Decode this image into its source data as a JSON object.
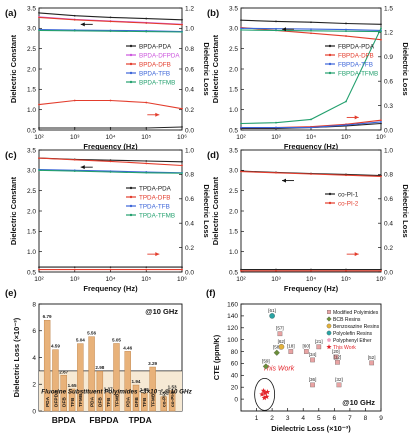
{
  "chart_data": [
    {
      "type": "line",
      "panel": "(a)",
      "xlabel": "Frequency (Hz)",
      "ylabel": "Dielectric Constant",
      "ylabel2": "Dielectric Loss",
      "xscale": "log",
      "xlim": [
        100,
        1000000
      ],
      "xticks": [
        "10²",
        "10³",
        "10⁴",
        "10⁵",
        "10⁶"
      ],
      "ylim": [
        0.5,
        3.5
      ],
      "yticks": [
        "0.5",
        "1.0",
        "1.5",
        "2.0",
        "2.5",
        "3.0",
        "3.5"
      ],
      "y2lim": [
        0.0,
        1.2
      ],
      "y2ticks": [
        "0.0",
        "0.2",
        "0.4",
        "0.6",
        "0.8",
        "1.0",
        "1.2"
      ],
      "legend_position": "center-right",
      "series": [
        {
          "name": "BPDA-PDA",
          "color": "#222222",
          "axis": "left",
          "x": [
            100,
            1000,
            10000,
            100000,
            1000000
          ],
          "y": [
            3.38,
            3.31,
            3.27,
            3.24,
            3.21
          ]
        },
        {
          "name": "BPDA-DFPDA",
          "color": "#cc55dd",
          "axis": "left",
          "x": [
            100,
            1000,
            10000,
            100000,
            1000000
          ],
          "y": [
            3.28,
            3.22,
            3.18,
            3.14,
            3.1
          ]
        },
        {
          "name": "BPDA-DFB",
          "color": "#e33c2c",
          "axis": "left",
          "x": [
            100,
            1000,
            10000,
            100000,
            1000000
          ],
          "y": [
            3.27,
            3.21,
            3.17,
            3.13,
            3.09
          ]
        },
        {
          "name": "BPDA-TFB",
          "color": "#3b64d8",
          "axis": "left",
          "x": [
            100,
            1000,
            10000,
            100000,
            1000000
          ],
          "y": [
            2.97,
            2.96,
            2.95,
            2.94,
            2.92
          ]
        },
        {
          "name": "BPDA-TFMB",
          "color": "#23a06e",
          "axis": "left",
          "x": [
            100,
            1000,
            10000,
            100000,
            1000000
          ],
          "y": [
            2.95,
            2.94,
            2.93,
            2.92,
            2.91
          ]
        },
        {
          "name": "BPDA-DFB loss",
          "color": "#e33c2c",
          "axis": "right",
          "x": [
            100,
            1000,
            10000,
            100000,
            1000000
          ],
          "y": [
            0.25,
            0.29,
            0.29,
            0.27,
            0.21
          ]
        },
        {
          "name": "BPDA-PDA loss",
          "color": "#222222",
          "axis": "right",
          "x": [
            100,
            1000,
            10000,
            100000,
            1000000
          ],
          "y": [
            0.02,
            0.02,
            0.02,
            0.02,
            0.03
          ]
        }
      ]
    },
    {
      "type": "line",
      "panel": "(b)",
      "xlabel": "Frequency (Hz)",
      "ylabel": "Dielectric Constant",
      "ylabel2": "Dielectric Loss",
      "xscale": "log",
      "xlim": [
        100,
        1000000
      ],
      "xticks": [
        "10²",
        "10³",
        "10⁴",
        "10⁵",
        "10⁶"
      ],
      "ylim": [
        0.5,
        3.5
      ],
      "yticks": [
        "0.5",
        "1.0",
        "1.5",
        "2.0",
        "2.5",
        "3.0",
        "3.5"
      ],
      "y2lim": [
        0.0,
        1.5
      ],
      "y2ticks": [
        "0.0",
        "0.3",
        "0.6",
        "0.9",
        "1.2",
        "1.5"
      ],
      "legend_position": "center-right",
      "series": [
        {
          "name": "FBPDA-PDA",
          "color": "#222222",
          "axis": "left",
          "x": [
            100,
            1000,
            10000,
            100000,
            1000000
          ],
          "y": [
            3.2,
            3.17,
            3.15,
            3.12,
            3.1
          ]
        },
        {
          "name": "FBPDA-DFB",
          "color": "#e33c2c",
          "axis": "left",
          "x": [
            100,
            1000,
            10000,
            100000,
            1000000
          ],
          "y": [
            3.02,
            2.95,
            2.88,
            2.81,
            2.72
          ]
        },
        {
          "name": "FBPDA-TFB",
          "color": "#3b64d8",
          "axis": "left",
          "x": [
            100,
            1000,
            10000,
            100000,
            1000000
          ],
          "y": [
            3.0,
            2.99,
            2.98,
            2.97,
            2.95
          ]
        },
        {
          "name": "FBPDA-TFMB",
          "color": "#23a06e",
          "axis": "left",
          "x": [
            100,
            1000,
            10000,
            100000,
            1000000
          ],
          "y": [
            2.96,
            2.95,
            2.94,
            2.93,
            2.92
          ]
        },
        {
          "name": "FBPDA-PDA loss",
          "color": "#222222",
          "axis": "right",
          "x": [
            100,
            1000,
            10000,
            100000,
            1000000
          ],
          "y": [
            0.02,
            0.02,
            0.03,
            0.05,
            0.08
          ]
        },
        {
          "name": "FBPDA-DFB loss",
          "color": "#e33c2c",
          "axis": "right",
          "x": [
            100,
            1000,
            10000,
            100000,
            1000000
          ],
          "y": [
            0.03,
            0.03,
            0.04,
            0.07,
            0.12
          ]
        },
        {
          "name": "FBPDA-TFB loss",
          "color": "#3b64d8",
          "axis": "right",
          "x": [
            100,
            1000,
            10000,
            100000,
            1000000
          ],
          "y": [
            0.03,
            0.03,
            0.03,
            0.06,
            0.1
          ]
        },
        {
          "name": "FBPDA-TFMB loss",
          "color": "#23a06e",
          "axis": "right",
          "x": [
            100,
            1000,
            10000,
            100000,
            1000000
          ],
          "y": [
            0.08,
            0.09,
            0.13,
            0.35,
            1.25
          ]
        }
      ]
    },
    {
      "type": "line",
      "panel": "(c)",
      "xlabel": "Frequency (Hz)",
      "ylabel": "Dielectric Constant",
      "ylabel2": "Dielectric Loss",
      "xscale": "log",
      "xlim": [
        100,
        1000000
      ],
      "xticks": [
        "10²",
        "10³",
        "10⁴",
        "10⁵",
        "10⁶"
      ],
      "ylim": [
        0.5,
        3.5
      ],
      "yticks": [
        "0.5",
        "1.0",
        "1.5",
        "2.0",
        "2.5",
        "3.0",
        "3.5"
      ],
      "y2lim": [
        0.0,
        1.0
      ],
      "y2ticks": [
        "0.0",
        "0.2",
        "0.4",
        "0.6",
        "0.8",
        "1.0"
      ],
      "legend_position": "center-right",
      "series": [
        {
          "name": "TPDA-PDA",
          "color": "#222222",
          "axis": "left",
          "x": [
            100,
            1000,
            10000,
            100000,
            1000000
          ],
          "y": [
            3.3,
            3.27,
            3.25,
            3.23,
            3.21
          ]
        },
        {
          "name": "TPDA-DFB",
          "color": "#e33c2c",
          "axis": "left",
          "x": [
            100,
            1000,
            10000,
            100000,
            1000000
          ],
          "y": [
            3.3,
            3.26,
            3.22,
            3.17,
            3.12
          ]
        },
        {
          "name": "TPDA-TFB",
          "color": "#3b64d8",
          "axis": "left",
          "x": [
            100,
            1000,
            10000,
            100000,
            1000000
          ],
          "y": [
            3.02,
            3.0,
            2.98,
            2.96,
            2.94
          ]
        },
        {
          "name": "TPDA-TFMB",
          "color": "#23a06e",
          "axis": "left",
          "x": [
            100,
            1000,
            10000,
            100000,
            1000000
          ],
          "y": [
            3.0,
            2.98,
            2.96,
            2.94,
            2.93
          ]
        },
        {
          "name": "TPDA-PDA loss",
          "color": "#222222",
          "axis": "right",
          "x": [
            100,
            1000,
            10000,
            100000,
            1000000
          ],
          "y": [
            0.04,
            0.04,
            0.04,
            0.04,
            0.04
          ]
        },
        {
          "name": "TPDA-DFB loss",
          "color": "#e33c2c",
          "axis": "right",
          "x": [
            100,
            1000,
            10000,
            100000,
            1000000
          ],
          "y": [
            0.02,
            0.02,
            0.02,
            0.02,
            0.02
          ]
        }
      ]
    },
    {
      "type": "line",
      "panel": "(d)",
      "xlabel": "Frequency (Hz)",
      "ylabel": "Dielectric Constant",
      "ylabel2": "Dielectric Loss",
      "xscale": "log",
      "xlim": [
        100,
        1000000
      ],
      "xticks": [
        "10²",
        "10³",
        "10⁴",
        "10⁵",
        "10⁶"
      ],
      "ylim": [
        0.5,
        3.5
      ],
      "yticks": [
        "0.5",
        "1.0",
        "1.5",
        "2.0",
        "2.5",
        "3.0",
        "3.5"
      ],
      "y2lim": [
        0.0,
        1.0
      ],
      "y2ticks": [
        "0.0",
        "0.2",
        "0.4",
        "0.6",
        "0.8",
        "1.0"
      ],
      "legend_position": "center-right",
      "series": [
        {
          "name": "co-PI-1",
          "color": "#222222",
          "axis": "left",
          "x": [
            100,
            1000,
            10000,
            100000,
            1000000
          ],
          "y": [
            2.98,
            2.95,
            2.92,
            2.9,
            2.87
          ]
        },
        {
          "name": "co-PI-2",
          "color": "#e33c2c",
          "axis": "left",
          "x": [
            100,
            1000,
            10000,
            100000,
            1000000
          ],
          "y": [
            2.97,
            2.94,
            2.91,
            2.88,
            2.85
          ]
        },
        {
          "name": "co-PI-1 loss",
          "color": "#222222",
          "axis": "right",
          "x": [
            100,
            1000,
            10000,
            100000,
            1000000
          ],
          "y": [
            0.02,
            0.02,
            0.02,
            0.02,
            0.02
          ]
        },
        {
          "name": "co-PI-2 loss",
          "color": "#e33c2c",
          "axis": "right",
          "x": [
            100,
            1000,
            10000,
            100000,
            1000000
          ],
          "y": [
            0.01,
            0.01,
            0.01,
            0.01,
            0.01
          ]
        }
      ]
    },
    {
      "type": "bar",
      "panel": "(e)",
      "title": "@10 GHz",
      "ylabel": "Dielectric Loss (×10⁻³)",
      "ylim": [
        0,
        8
      ],
      "yticks": [
        "0",
        "2",
        "4",
        "6",
        "8"
      ],
      "reference_line": 3,
      "annotation": "Fluorine Substituent Polyimides <3×10⁻³ @10 GHz",
      "categories": [
        "PDA",
        "DFPDA",
        "DFB",
        "TFB",
        "TFMB",
        "PDA",
        "DFB",
        "TFB",
        "TFMB",
        "PDA",
        "DFB",
        "TFB",
        "TFMB",
        "co-PI-1",
        "co-PI-2"
      ],
      "groups": [
        {
          "name": "BPDA",
          "categories": [
            "PDA",
            "DFPDA",
            "DFB",
            "TFB",
            "TFMB"
          ]
        },
        {
          "name": "FBPDA",
          "categories": [
            "PDA",
            "DFB",
            "TFB",
            "TFMB"
          ]
        },
        {
          "name": "TPDA",
          "categories": [
            "PDA",
            "DFB",
            "TFB",
            "TFMB"
          ]
        }
      ],
      "values": [
        6.79,
        4.59,
        2.67,
        1.65,
        5.04,
        5.56,
        2.98,
        1.37,
        5.05,
        4.46,
        1.94,
        1.35,
        3.29,
        1.07,
        1.53
      ],
      "labels": [
        "6.79",
        "4.59",
        "2.67",
        "1.65",
        "5.04",
        "5.56",
        "2.98",
        "1.37",
        "5.05",
        "4.46",
        "1.94",
        "1.35",
        "3.29",
        "1.07",
        "1.53"
      ]
    },
    {
      "type": "scatter",
      "panel": "(f)",
      "title": "@10 GHz",
      "xlabel": "Dielectric Loss (×10⁻³)",
      "ylabel": "CTE (ppm/K)",
      "xlim": [
        0,
        9
      ],
      "ylim": [
        -20,
        160
      ],
      "xticks": [
        "1",
        "2",
        "3",
        "4",
        "5",
        "6",
        "7",
        "8",
        "9"
      ],
      "yticks": [
        "0",
        "20",
        "40",
        "60",
        "80",
        "100",
        "120",
        "140",
        "160"
      ],
      "legend_position": "top-right",
      "highlight": "This Work",
      "series": [
        {
          "name": "Modified Polyimides",
          "color": "#e9a3a3",
          "marker": "square",
          "points": [
            {
              "x": 2.5,
              "y": 110,
              "label": "[57]"
            },
            {
              "x": 3.2,
              "y": 80,
              "label": "[18]"
            },
            {
              "x": 4.2,
              "y": 80,
              "label": "[60]"
            },
            {
              "x": 5.0,
              "y": 88,
              "label": "[21]"
            },
            {
              "x": 4.6,
              "y": 66,
              "label": "[34]"
            },
            {
              "x": 6.1,
              "y": 71,
              "label": "[20]"
            },
            {
              "x": 6.2,
              "y": 62,
              "label": "[12]"
            },
            {
              "x": 8.4,
              "y": 61,
              "label": "[52]"
            },
            {
              "x": 4.6,
              "y": 24,
              "label": "[36]"
            },
            {
              "x": 6.3,
              "y": 24,
              "label": "[32]"
            }
          ]
        },
        {
          "name": "BCB Resins",
          "color": "#6b8e3a",
          "marker": "diamond",
          "points": [
            {
              "x": 1.6,
              "y": 55,
              "label": "[59]"
            },
            {
              "x": 2.3,
              "y": 78,
              "label": "[58]"
            }
          ]
        },
        {
          "name": "Benzoxazine Resins",
          "color": "#e3b23c",
          "marker": "circle",
          "points": [
            {
              "x": 2.6,
              "y": 88,
              "label": "[62]"
            }
          ]
        },
        {
          "name": "Polyolefin Resins",
          "color": "#2aa3a3",
          "marker": "circle",
          "points": [
            {
              "x": 2.0,
              "y": 140,
              "label": "[61]"
            }
          ]
        },
        {
          "name": "Polyphenyl Ether",
          "color": "#f0a0c0",
          "marker": "pentagon",
          "points": []
        },
        {
          "name": "This Work",
          "color": "#e3242b",
          "marker": "star",
          "points": [
            {
              "x": 1.35,
              "y": 8
            },
            {
              "x": 1.45,
              "y": 14
            },
            {
              "x": 1.55,
              "y": 10
            },
            {
              "x": 1.65,
              "y": 4
            },
            {
              "x": 1.5,
              "y": 2
            },
            {
              "x": 1.7,
              "y": 12
            }
          ]
        }
      ]
    }
  ]
}
